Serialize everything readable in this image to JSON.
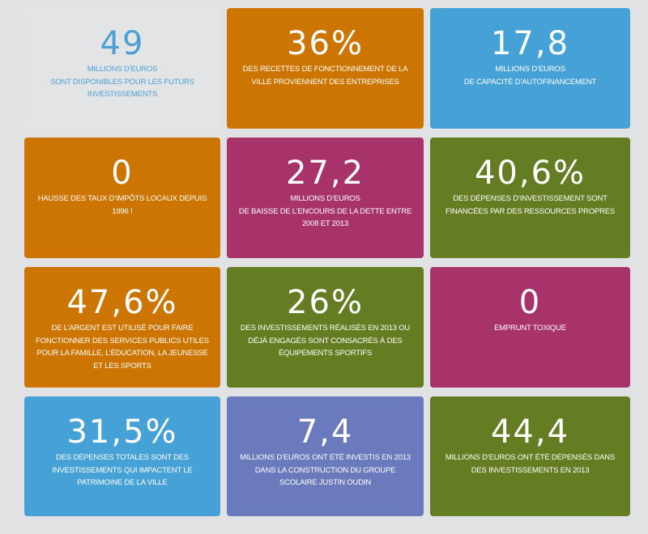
{
  "colors": {
    "gray": "#e3e4e5",
    "orange": "#cc7502",
    "blue": "#46a1d6",
    "magenta": "#a8336a",
    "green": "#657d22",
    "indigo": "#6a7abc",
    "gray_text": "#4a9fd6"
  },
  "tiles": [
    {
      "number": "49",
      "text": "MILLIONS D’EUROS\nSONT DISPONIBLES POUR LES FUTURS\nINVESTISSEMENTS",
      "color": "gray"
    },
    {
      "number": "36%",
      "text": "DES RECETTES DE FONCTIONNEMENT DE LA\nVILLE PROVIENNENT DES ENTREPRISES",
      "color": "orange"
    },
    {
      "number": "17,8",
      "text": "MILLIONS D’EUROS\nDE CAPACITÉ D’AUTOFINANCEMENT",
      "color": "blue"
    },
    {
      "number": "0",
      "text": "HAUSSE DES TAUX D’IMPÔTS LOCAUX DEPUIS\n1996 !",
      "color": "orange"
    },
    {
      "number": "27,2",
      "text": "MILLIONS D’EUROS\nDE BAISSE DE L’ENCOURS DE LA DETTE ENTRE\n2008 ET 2013",
      "color": "magenta"
    },
    {
      "number": "40,6%",
      "text": "DES DÉPENSES D’INVESTISSEMENT SONT\nFINANCÉES PAR DES RESSOURCES PROPRES",
      "color": "green"
    },
    {
      "number": "47,6%",
      "text": "DE L’ARGENT EST UTILISÉ POUR FAIRE\nFONCTIONNER DES SERVICES PUBLICS UTILES\nPOUR LA FAMILLE, L’ÉDUCATION, LA JEUNESSE\nET LES SPORTS",
      "color": "orange"
    },
    {
      "number": "26%",
      "text": "DES INVESTISSEMENTS RÉALISÉS EN 2013 OU\nDÉJÀ ENGAGÉS SONT CONSACRÉS À DES\nÉQUIPEMENTS SPORTIFS",
      "color": "green"
    },
    {
      "number": "0",
      "text": "EMPRUNT TOXIQUE",
      "color": "magenta"
    },
    {
      "number": "31,5%",
      "text": "DES DÉPENSES TOTALES SONT DES\nINVESTISSEMENTS QUI IMPACTENT LE\nPATRIMOINE DE LA VILLE",
      "color": "blue"
    },
    {
      "number": "7,4",
      "text": "MILLIONS D’EUROS ONT ÉTÉ INVESTIS EN 2013\nDANS LA CONSTRUCTION DU GROUPE\nSCOLAIRE JUSTIN OUDIN",
      "color": "indigo"
    },
    {
      "number": "44,4",
      "text": "MILLIONS D’EUROS ONT ÉTÉ DÉPENSÉS DANS\nDES INVESTISSEMENTS EN 2013",
      "color": "green"
    }
  ]
}
